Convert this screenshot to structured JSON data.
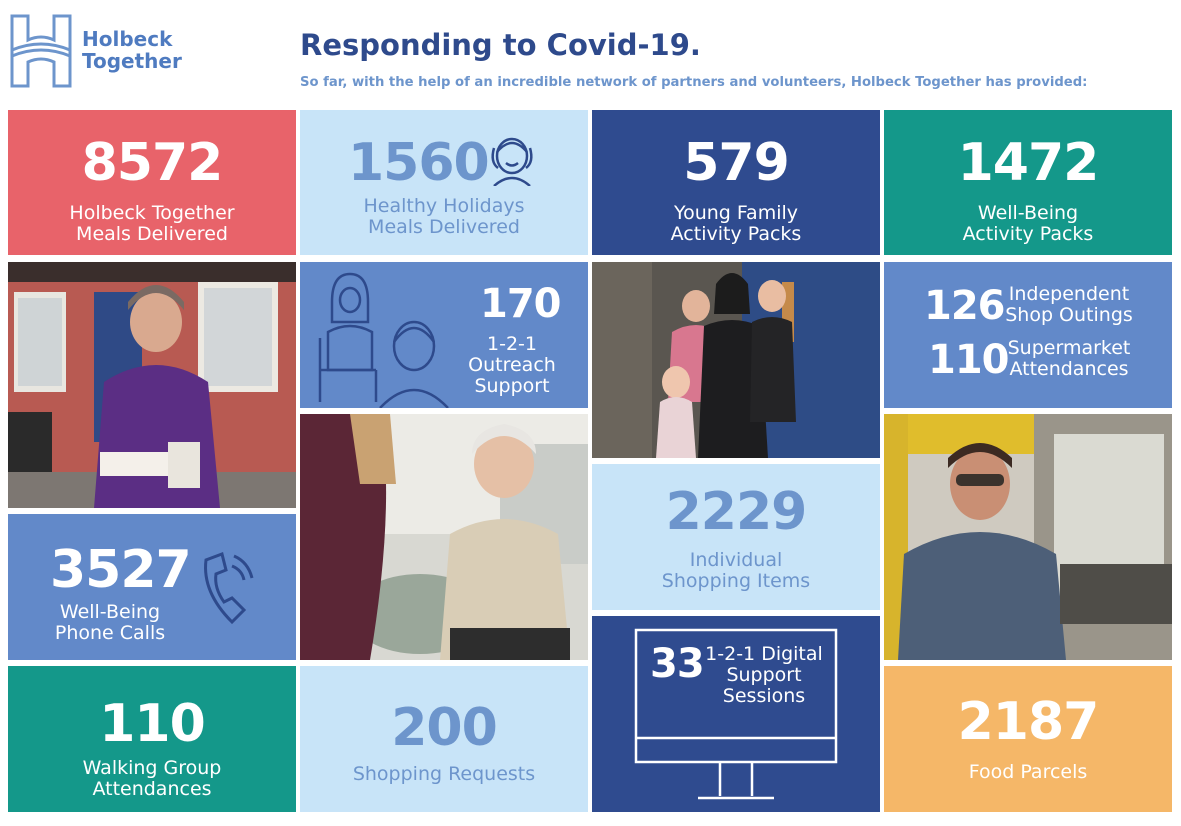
{
  "brand": {
    "line1": "Holbeck",
    "line2": "Together"
  },
  "header": {
    "title": "Responding to Covid-19.",
    "subtitle": "So far, with the help of an incredible network of partners and volunteers, Holbeck Together has provided:"
  },
  "stats": {
    "meals": {
      "value": "8572",
      "line1": "Holbeck Together",
      "line2": "Meals Delivered"
    },
    "holiday_meals": {
      "value": "1560",
      "line1": "Healthy Holidays",
      "line2": "Meals Delivered"
    },
    "family_packs": {
      "value": "579",
      "line1": "Young Family",
      "line2": "Activity Packs"
    },
    "wellbeing_packs": {
      "value": "1472",
      "line1": "Well-Being",
      "line2": "Activity Packs"
    },
    "outreach": {
      "value": "170",
      "line1": "1-2-1",
      "line2": "Outreach",
      "line3": "Support"
    },
    "shop_outings": {
      "value": "126",
      "line1": "Independent",
      "line2": "Shop Outings"
    },
    "supermarket": {
      "value": "110",
      "line1": "Supermarket",
      "line2": "Attendances"
    },
    "phone_calls": {
      "value": "3527",
      "line1": "Well-Being",
      "line2": "Phone Calls"
    },
    "shopping_items": {
      "value": "2229",
      "line1": "Individual",
      "line2": "Shopping Items"
    },
    "digital": {
      "value": "33",
      "line1": "1-2-1 Digital",
      "line2": "Support",
      "line3": "Sessions"
    },
    "walking": {
      "value": "110",
      "line1": "Walking Group",
      "line2": "Attendances"
    },
    "shopping_requests": {
      "value": "200",
      "line1": "Shopping Requests"
    },
    "food_parcels": {
      "value": "2187",
      "line1": "Food Parcels"
    }
  },
  "colors": {
    "red": "#e8636a",
    "light_blue": "#c8e4f8",
    "navy": "#2f4b8f",
    "teal": "#14988a",
    "mid_blue": "#6289c9",
    "orange": "#f5b768",
    "brand_blue": "#2e4a8c"
  }
}
